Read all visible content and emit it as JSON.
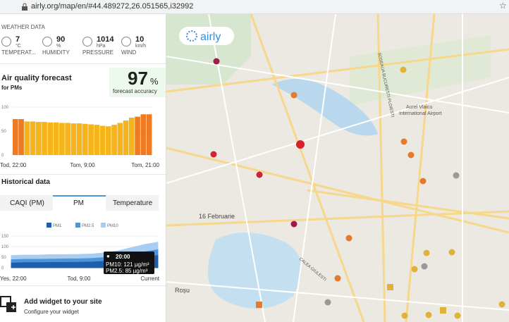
{
  "address_bar": {
    "url": "airly.org/map/en/#44.489272,26.051565,i32992"
  },
  "weather": {
    "title": "WEATHER DATA",
    "items": [
      {
        "value": "7",
        "unit": "°C",
        "label": "TEMPERAT..."
      },
      {
        "value": "90",
        "unit": "%",
        "label": "HUMIDITY"
      },
      {
        "value": "1014",
        "unit": "hPa",
        "label": "PRESSURE"
      },
      {
        "value": "10",
        "unit": "km/h",
        "label": "WIND"
      }
    ]
  },
  "forecast": {
    "title": "Air quality forecast",
    "subtitle": "for PMs",
    "accuracy": "97",
    "accuracy_unit": "%",
    "accuracy_label": "forecast accuracy",
    "chart": {
      "type": "bar",
      "values": [
        75,
        75,
        70,
        70,
        69,
        69,
        68,
        68,
        67,
        67,
        66,
        66,
        65,
        64,
        63,
        61,
        60,
        63,
        67,
        72,
        78,
        80,
        85,
        85
      ],
      "colors": [
        "#ee7a24",
        "#ee7a24",
        "#f4b41a",
        "#f4b41a",
        "#f4b41a",
        "#f4b41a",
        "#f4b41a",
        "#f4b41a",
        "#f4b41a",
        "#f4b41a",
        "#f4b41a",
        "#f4b41a",
        "#f4b41a",
        "#f4b41a",
        "#f4b41a",
        "#f4b41a",
        "#f4b41a",
        "#f4b41a",
        "#f4b41a",
        "#f4b41a",
        "#f4b41a",
        "#ee7a24",
        "#ee7a24",
        "#ee7a24"
      ],
      "ylim": [
        0,
        100
      ],
      "yticks": [
        0,
        50,
        100
      ],
      "x_labels": [
        "Tod, 22:00",
        "Tom, 9:00",
        "Tom, 21:00"
      ]
    }
  },
  "historical": {
    "title": "Historical data",
    "tabs": [
      "CAQI (PM)",
      "PM",
      "Temperature"
    ],
    "chart": {
      "type": "area",
      "series": [
        {
          "name": "PM1",
          "color": "#1f5faa",
          "values": [
            22,
            24,
            24,
            25,
            25,
            26,
            27,
            30,
            35,
            42,
            50,
            58
          ]
        },
        {
          "name": "PM2.5",
          "color": "#4c95dc",
          "values": [
            38,
            40,
            40,
            41,
            42,
            42,
            44,
            48,
            55,
            65,
            75,
            85
          ]
        },
        {
          "name": "PM10",
          "color": "#a8cdf0",
          "values": [
            58,
            60,
            60,
            62,
            62,
            63,
            65,
            70,
            80,
            95,
            110,
            121
          ]
        }
      ],
      "ylim": [
        0,
        150
      ],
      "yticks": [
        0,
        50,
        100,
        150
      ],
      "x_labels": [
        "Yes, 22:00",
        "Tod, 9:00",
        "Current"
      ]
    },
    "tooltip": {
      "time": "20:00",
      "lines": [
        "PM10: 121 µg/m³",
        "PM2.5: 85 µg/m³"
      ]
    }
  },
  "widget": {
    "title": "Add widget to your site",
    "subtitle": "Configure your widget"
  },
  "map": {
    "logo": "airly",
    "labels": [
      "SOSEAUA BUCURESTI PLOIESTI",
      "Aurel Vlaicu",
      "International Airport",
      "16 Februarie",
      "CALEA GIULESTI",
      "Roșu"
    ]
  }
}
